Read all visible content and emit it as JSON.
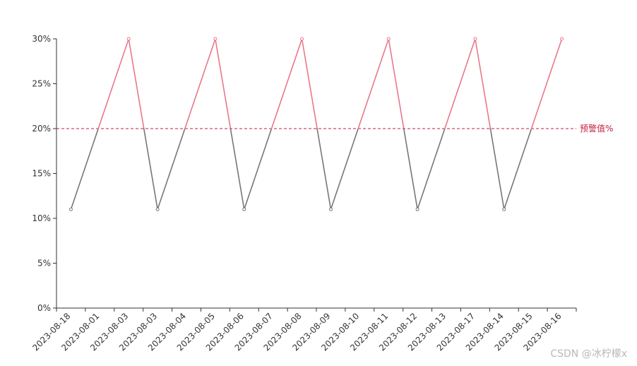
{
  "chart_data": {
    "type": "line",
    "categories": [
      "2023-08-18",
      "2023-08-01",
      "2023-08-03",
      "2023-08-03",
      "2023-08-04",
      "2023-08-05",
      "2023-08-06",
      "2023-08-07",
      "2023-08-08",
      "2023-08-09",
      "2023-08-10",
      "2023-08-11",
      "2023-08-12",
      "2023-08-13",
      "2023-08-17",
      "2023-08-14",
      "2023-08-15",
      "2023-08-16"
    ],
    "points": [
      {
        "x": 0.5,
        "y": 11
      },
      {
        "x": 2.5,
        "y": 30
      },
      {
        "x": 3.5,
        "y": 11
      },
      {
        "x": 5.5,
        "y": 30
      },
      {
        "x": 6.5,
        "y": 11
      },
      {
        "x": 8.5,
        "y": 30
      },
      {
        "x": 9.5,
        "y": 11
      },
      {
        "x": 11.5,
        "y": 30
      },
      {
        "x": 12.5,
        "y": 11
      },
      {
        "x": 14.5,
        "y": 30
      },
      {
        "x": 15.5,
        "y": 11
      },
      {
        "x": 17.5,
        "y": 30
      }
    ],
    "y_ticks": [
      0,
      5,
      10,
      15,
      20,
      25,
      30
    ],
    "y_tick_labels": [
      "0%",
      "5%",
      "10%",
      "15%",
      "20%",
      "25%",
      "30%"
    ],
    "ylim": [
      0,
      30
    ],
    "threshold": {
      "value": 20,
      "label": "预警值%"
    },
    "colors": {
      "above": "#e8788a",
      "below": "#777777",
      "threshold": "#c41e3a",
      "axis": "#333333"
    },
    "title": "",
    "xlabel": "",
    "ylabel": "",
    "grid": false
  },
  "watermark": "CSDN @冰柠檬x"
}
